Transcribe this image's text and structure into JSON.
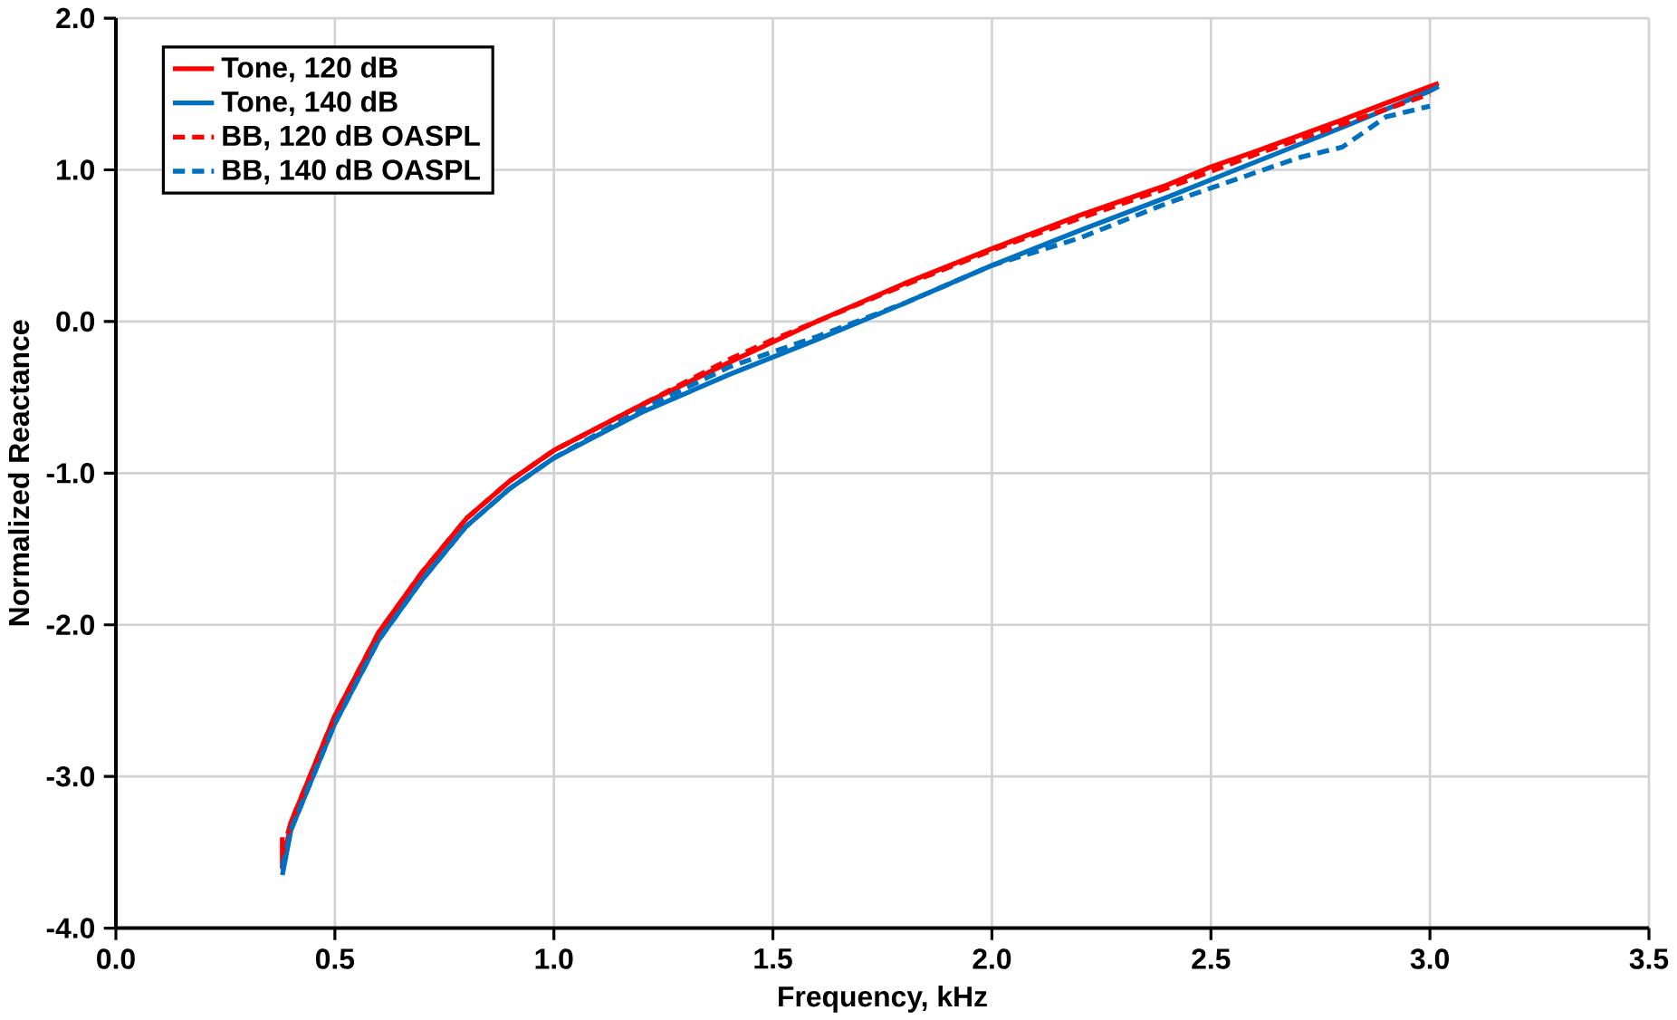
{
  "chart_data": {
    "type": "line",
    "xlabel": "Frequency, kHz",
    "ylabel": "Normalized Reactance",
    "xlim": [
      0,
      3.5
    ],
    "ylim": [
      -4,
      2
    ],
    "xticks": [
      {
        "value": 0,
        "label": "0.0"
      },
      {
        "value": 0.5,
        "label": "0.5"
      },
      {
        "value": 1,
        "label": "1.0"
      },
      {
        "value": 1.5,
        "label": "1.5"
      },
      {
        "value": 2,
        "label": "2.0"
      },
      {
        "value": 2.5,
        "label": "2.5"
      },
      {
        "value": 3,
        "label": "3.0"
      },
      {
        "value": 3.5,
        "label": "3.5"
      }
    ],
    "yticks": [
      {
        "value": -4,
        "label": "-4.0"
      },
      {
        "value": -3,
        "label": "-3.0"
      },
      {
        "value": -2,
        "label": "-2.0"
      },
      {
        "value": -1,
        "label": "-1.0"
      },
      {
        "value": 0,
        "label": "0.0"
      },
      {
        "value": 1,
        "label": "1.0"
      },
      {
        "value": 2,
        "label": "2.0"
      }
    ],
    "grid": true,
    "legend": "top left",
    "marker": "none",
    "series": [
      {
        "name": "Tone, 120 dB",
        "color": "#ff0000",
        "line_style": "solid",
        "x": [
          0.38,
          0.38,
          0.4,
          0.45,
          0.5,
          0.6,
          0.7,
          0.8,
          0.9,
          1.0,
          1.2,
          1.4,
          1.6,
          1.8,
          2.0,
          2.2,
          2.4,
          2.5,
          2.6,
          2.8,
          3.0,
          3.02
        ],
        "values": [
          -3.4,
          -3.6,
          -3.3,
          -2.95,
          -2.6,
          -2.05,
          -1.65,
          -1.3,
          -1.05,
          -0.85,
          -0.55,
          -0.27,
          0.0,
          0.25,
          0.48,
          0.7,
          0.9,
          1.02,
          1.12,
          1.33,
          1.55,
          1.57
        ]
      },
      {
        "name": "Tone, 140 dB",
        "color": "#0070c0",
        "line_style": "solid",
        "x": [
          0.38,
          0.4,
          0.5,
          0.6,
          0.7,
          0.8,
          0.9,
          1.0,
          1.2,
          1.4,
          1.6,
          1.8,
          2.0,
          2.2,
          2.4,
          2.6,
          2.8,
          3.0,
          3.02
        ],
        "values": [
          -3.65,
          -3.35,
          -2.65,
          -2.1,
          -1.7,
          -1.35,
          -1.1,
          -0.9,
          -0.6,
          -0.35,
          -0.12,
          0.12,
          0.37,
          0.6,
          0.82,
          1.05,
          1.28,
          1.52,
          1.55
        ]
      },
      {
        "name": "BB, 120 dB OASPL",
        "color": "#ff0000",
        "line_style": "dashed",
        "x": [
          0.38,
          0.4,
          0.5,
          0.6,
          0.7,
          0.8,
          0.9,
          1.0,
          1.2,
          1.3,
          1.4,
          1.5,
          1.6,
          1.8,
          2.0,
          2.2,
          2.4,
          2.6,
          2.8,
          3.0
        ],
        "values": [
          -3.5,
          -3.3,
          -2.6,
          -2.05,
          -1.65,
          -1.3,
          -1.05,
          -0.85,
          -0.55,
          -0.4,
          -0.25,
          -0.12,
          0.0,
          0.24,
          0.47,
          0.68,
          0.88,
          1.1,
          1.3,
          1.5
        ]
      },
      {
        "name": "BB, 140 dB OASPL",
        "color": "#0070c0",
        "line_style": "dashed",
        "x": [
          0.38,
          0.4,
          0.5,
          0.6,
          0.7,
          0.8,
          0.9,
          1.0,
          1.2,
          1.4,
          1.6,
          1.8,
          2.0,
          2.2,
          2.4,
          2.6,
          2.7,
          2.8,
          2.9,
          3.0
        ],
        "values": [
          -3.6,
          -3.35,
          -2.65,
          -2.1,
          -1.7,
          -1.35,
          -1.1,
          -0.9,
          -0.58,
          -0.3,
          -0.1,
          0.12,
          0.37,
          0.55,
          0.78,
          0.98,
          1.08,
          1.15,
          1.35,
          1.42
        ]
      }
    ]
  }
}
